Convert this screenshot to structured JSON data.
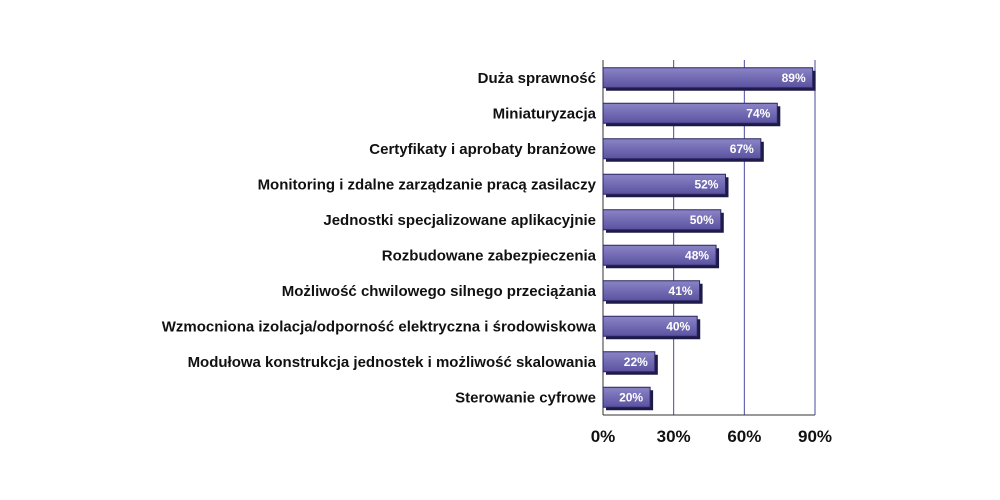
{
  "chart_data": {
    "type": "bar",
    "orientation": "horizontal",
    "categories": [
      "Duża sprawność",
      "Miniaturyzacja",
      "Certyfikaty i aprobaty branżowe",
      "Monitoring i zdalne zarządzanie pracą zasilaczy",
      "Jednostki specjalizowane aplikacyjnie",
      "Rozbudowane zabezpieczenia",
      "Możliwość chwilowego silnego przeciążania",
      "Wzmocniona izolacja/odporność elektryczna i środowiskowa",
      "Modułowa konstrukcja jednostek i możliwość skalowania",
      "Sterowanie cyfrowe"
    ],
    "values": [
      89,
      74,
      67,
      52,
      50,
      48,
      41,
      40,
      22,
      20
    ],
    "data_labels": [
      "89%",
      "74%",
      "67%",
      "52%",
      "50%",
      "48%",
      "41%",
      "40%",
      "22%",
      "20%"
    ],
    "xlim": [
      0,
      90
    ],
    "x_ticks": [
      0,
      30,
      60,
      90
    ],
    "x_tick_labels": [
      "0%",
      "30%",
      "60%",
      "90%"
    ],
    "grid": true,
    "legend": "none",
    "colors": {
      "bar_top": "#8a84c6",
      "bar_bottom": "#5a52a0",
      "bar_edge": "#2a2560",
      "bar_shadow": "#1e1a48",
      "grid": "#4a4aa0",
      "axis": "#333333"
    }
  }
}
